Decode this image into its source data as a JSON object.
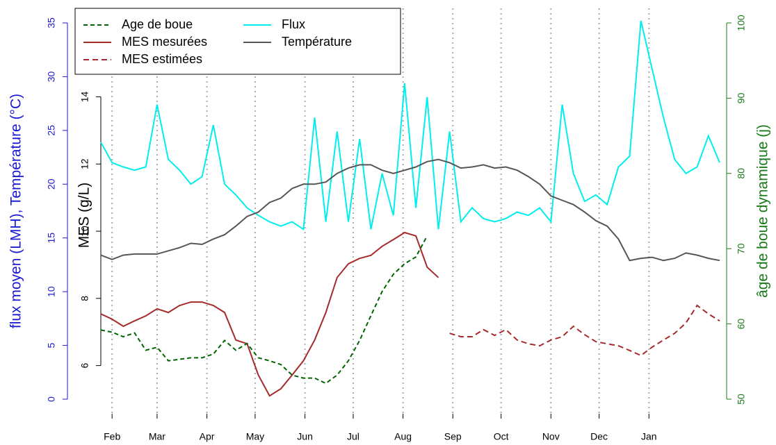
{
  "chart_data": {
    "type": "line",
    "ylabel": "flux moyen (LMH), Température (°C)",
    "y2label": "MES (g/L)",
    "y3label": "âge de boue dynamique (j)",
    "ycolor": "#1a1ad0",
    "y2color": "#000000",
    "y3color": "#1a7a1a",
    "xlim": [
      0,
      385
    ],
    "xticks": [
      {
        "value": 7,
        "label": "Feb"
      },
      {
        "value": 35,
        "label": "Mar"
      },
      {
        "value": 66,
        "label": "Apr"
      },
      {
        "value": 96,
        "label": "May"
      },
      {
        "value": 127,
        "label": "Jun"
      },
      {
        "value": 157,
        "label": "Jul"
      },
      {
        "value": 188,
        "label": "Aug"
      },
      {
        "value": 219,
        "label": "Sep"
      },
      {
        "value": 249,
        "label": "Oct"
      },
      {
        "value": 280,
        "label": "Nov"
      },
      {
        "value": 310,
        "label": "Dec"
      },
      {
        "value": 341,
        "label": "Jan"
      }
    ],
    "grid": true,
    "ylim": [
      0,
      35
    ],
    "yticks": [
      0,
      5,
      10,
      15,
      20,
      25,
      30,
      35
    ],
    "y2lim": [
      5,
      16.2
    ],
    "y2ticks": [
      6,
      8,
      10,
      12,
      14
    ],
    "y3lim": [
      50,
      100
    ],
    "y3ticks": [
      50,
      60,
      70,
      80,
      90,
      100
    ],
    "legend": "top-left",
    "x": [
      0,
      7,
      14,
      21,
      28,
      35,
      42,
      49,
      56,
      63,
      70,
      77,
      84,
      91,
      98,
      105,
      112,
      119,
      126,
      133,
      140,
      147,
      154,
      161,
      168,
      175,
      182,
      189,
      196,
      203,
      210,
      217,
      224,
      231,
      238,
      245,
      252,
      259,
      266,
      273,
      280,
      287,
      294,
      301,
      308,
      315,
      322,
      329,
      336,
      343,
      350,
      357,
      364,
      371,
      378,
      385
    ],
    "series": [
      {
        "name": "Age de boue",
        "color": "#006400",
        "dash": "6,4",
        "axis": "y3",
        "values": [
          59.2,
          58.9,
          58.3,
          58.8,
          56.5,
          56.9,
          55.1,
          55.3,
          55.5,
          55.5,
          56.0,
          57.8,
          56.5,
          57.4,
          55.5,
          55.1,
          54.6,
          53.2,
          52.8,
          52.8,
          52.1,
          53.2,
          55.1,
          57.8,
          61.1,
          64.3,
          66.6,
          68.0,
          68.9,
          71.7,
          null,
          null,
          null,
          null,
          null,
          null,
          null,
          null,
          null,
          null,
          null,
          null,
          null,
          null,
          null,
          null,
          null,
          null,
          null,
          null,
          null,
          null,
          null,
          null,
          null,
          null
        ]
      },
      {
        "name": "MES mesurées",
        "color": "#a52a2a",
        "dash": "",
        "axis": "y2",
        "values": [
          7.54,
          7.38,
          7.17,
          7.33,
          7.48,
          7.69,
          7.58,
          7.79,
          7.89,
          7.89,
          7.79,
          7.58,
          6.76,
          6.65,
          5.72,
          5.1,
          5.31,
          5.72,
          6.14,
          6.76,
          7.58,
          8.62,
          9.03,
          9.19,
          9.28,
          9.55,
          9.75,
          9.96,
          9.86,
          8.93,
          8.62,
          null,
          null,
          null,
          null,
          null,
          null,
          null,
          null,
          null,
          null,
          null,
          null,
          null,
          null,
          null,
          null,
          null,
          null,
          null,
          null,
          null,
          null,
          null,
          null,
          null
        ]
      },
      {
        "name": "MES estimées",
        "color": "#a52a2a",
        "dash": "8,5",
        "axis": "y2",
        "values": [
          null,
          null,
          null,
          null,
          null,
          null,
          null,
          null,
          null,
          null,
          null,
          null,
          null,
          null,
          null,
          null,
          null,
          null,
          null,
          null,
          null,
          null,
          null,
          null,
          null,
          null,
          null,
          null,
          null,
          null,
          null,
          6.96,
          6.86,
          6.86,
          7.07,
          6.9,
          7.07,
          6.76,
          6.65,
          6.59,
          6.76,
          6.86,
          7.17,
          6.92,
          6.71,
          6.65,
          6.59,
          6.45,
          6.3,
          6.55,
          6.76,
          6.96,
          7.27,
          7.79,
          7.54,
          7.33
        ]
      },
      {
        "name": "Flux",
        "color": "#00eeee",
        "dash": "",
        "axis": "y",
        "values": [
          23.9,
          22.0,
          21.6,
          21.3,
          21.6,
          27.4,
          22.3,
          21.3,
          20.0,
          20.7,
          25.5,
          20.0,
          19.0,
          17.8,
          17.1,
          16.5,
          16.1,
          16.5,
          15.8,
          26.2,
          16.5,
          24.9,
          16.5,
          24.2,
          15.8,
          21.0,
          17.1,
          29.4,
          17.8,
          28.1,
          15.8,
          24.9,
          16.5,
          17.8,
          16.8,
          16.5,
          16.8,
          17.4,
          17.1,
          17.8,
          16.5,
          27.4,
          21.0,
          18.4,
          19.0,
          18.1,
          21.6,
          22.6,
          35.2,
          30.7,
          26.2,
          22.3,
          21.0,
          21.6,
          24.5,
          22.0
        ]
      },
      {
        "name": "Température",
        "color": "#555555",
        "dash": "",
        "axis": "y",
        "values": [
          13.4,
          13.0,
          13.4,
          13.5,
          13.5,
          13.5,
          13.8,
          14.1,
          14.5,
          14.4,
          14.9,
          15.3,
          16.1,
          17.0,
          17.4,
          18.3,
          18.7,
          19.6,
          20.0,
          20.0,
          20.2,
          21.0,
          21.5,
          21.8,
          21.8,
          21.3,
          21.0,
          21.3,
          21.6,
          22.1,
          22.3,
          22.0,
          21.5,
          21.6,
          21.8,
          21.5,
          21.6,
          21.3,
          20.7,
          20.0,
          18.9,
          18.5,
          18.1,
          17.4,
          16.6,
          16.1,
          14.9,
          12.9,
          13.1,
          13.2,
          12.9,
          13.1,
          13.6,
          13.4,
          13.1,
          12.9
        ]
      }
    ]
  }
}
